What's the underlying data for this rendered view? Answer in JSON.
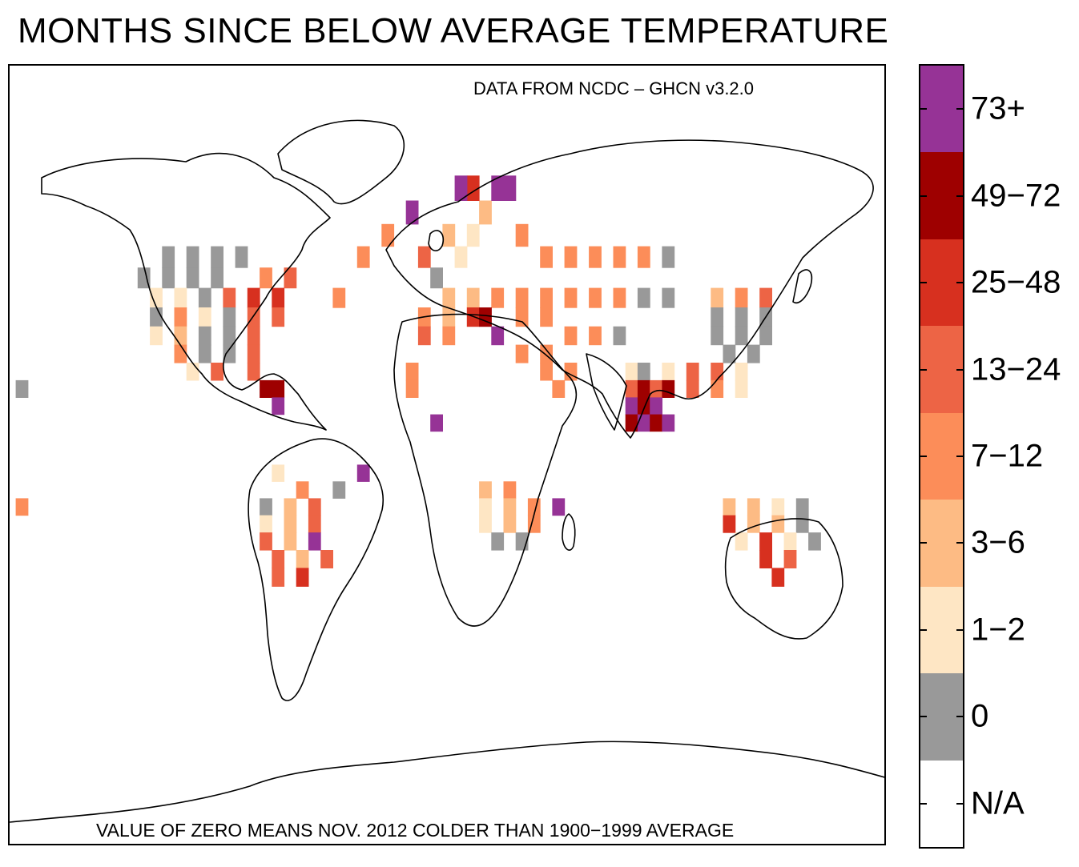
{
  "title": "MONTHS SINCE BELOW AVERAGE TEMPERATURE",
  "source": "DATA FROM NCDC – GHCN v3.2.0",
  "note": "VALUE OF ZERO MEANS NOV. 2012 COLDER THAN 1900−1999 AVERAGE",
  "legend": {
    "items": [
      {
        "label": "73+",
        "color": "#963396"
      },
      {
        "label": "49−72",
        "color": "#9e0000"
      },
      {
        "label": "25−48",
        "color": "#d7301f"
      },
      {
        "label": "13−24",
        "color": "#ed6445"
      },
      {
        "label": "7−12",
        "color": "#fc8d59"
      },
      {
        "label": "3−6",
        "color": "#fdbb84"
      },
      {
        "label": "1−2",
        "color": "#fee6c4"
      },
      {
        "label": "0",
        "color": "#999999"
      },
      {
        "label": "N/A",
        "color": "#ffffff"
      }
    ]
  },
  "map_cells": [
    {
      "lon": -115,
      "lat": 55,
      "v": 0
    },
    {
      "lon": -105,
      "lat": 55,
      "v": 0
    },
    {
      "lon": -95,
      "lat": 55,
      "v": 0
    },
    {
      "lon": -85,
      "lat": 55,
      "v": 0
    },
    {
      "lon": -125,
      "lat": 50,
      "v": 0
    },
    {
      "lon": -115,
      "lat": 50,
      "v": 0
    },
    {
      "lon": -105,
      "lat": 50,
      "v": 0
    },
    {
      "lon": -95,
      "lat": 50,
      "v": 0
    },
    {
      "lon": -75,
      "lat": 50,
      "v": 7
    },
    {
      "lon": -65,
      "lat": 50,
      "v": 13
    },
    {
      "lon": -120,
      "lat": 45,
      "v": 1
    },
    {
      "lon": -110,
      "lat": 45,
      "v": 1
    },
    {
      "lon": -100,
      "lat": 45,
      "v": 0
    },
    {
      "lon": -90,
      "lat": 45,
      "v": 13
    },
    {
      "lon": -80,
      "lat": 45,
      "v": 25
    },
    {
      "lon": -70,
      "lat": 45,
      "v": 25
    },
    {
      "lon": -120,
      "lat": 40,
      "v": 0
    },
    {
      "lon": -110,
      "lat": 40,
      "v": 7
    },
    {
      "lon": -100,
      "lat": 40,
      "v": 1
    },
    {
      "lon": -90,
      "lat": 40,
      "v": 0
    },
    {
      "lon": -80,
      "lat": 40,
      "v": 13
    },
    {
      "lon": -70,
      "lat": 40,
      "v": 13
    },
    {
      "lon": -120,
      "lat": 35,
      "v": 1
    },
    {
      "lon": -110,
      "lat": 35,
      "v": 3
    },
    {
      "lon": -100,
      "lat": 35,
      "v": 0
    },
    {
      "lon": -90,
      "lat": 35,
      "v": 0
    },
    {
      "lon": -80,
      "lat": 35,
      "v": 13
    },
    {
      "lon": -110,
      "lat": 30,
      "v": 7
    },
    {
      "lon": -100,
      "lat": 30,
      "v": 0
    },
    {
      "lon": -90,
      "lat": 30,
      "v": 0
    },
    {
      "lon": -80,
      "lat": 30,
      "v": 13
    },
    {
      "lon": -105,
      "lat": 25,
      "v": 1
    },
    {
      "lon": -95,
      "lat": 25,
      "v": 13
    },
    {
      "lon": -80,
      "lat": 25,
      "v": 13
    },
    {
      "lon": -75,
      "lat": 20,
      "v": 49
    },
    {
      "lon": -70,
      "lat": 20,
      "v": 49
    },
    {
      "lon": -70,
      "lat": 15,
      "v": 73
    },
    {
      "lon": -175,
      "lat": 20,
      "v": 0
    },
    {
      "lon": -175,
      "lat": -15,
      "v": 7
    },
    {
      "lon": -45,
      "lat": 45,
      "v": 7
    },
    {
      "lon": -35,
      "lat": 55,
      "v": 7
    },
    {
      "lon": -25,
      "lat": 60,
      "v": 7
    },
    {
      "lon": -15,
      "lat": 65,
      "v": 73
    },
    {
      "lon": -10,
      "lat": 55,
      "v": 13
    },
    {
      "lon": -5,
      "lat": 50,
      "v": 0
    },
    {
      "lon": 0,
      "lat": 60,
      "v": 3
    },
    {
      "lon": 5,
      "lat": 55,
      "v": 1
    },
    {
      "lon": 10,
      "lat": 60,
      "v": 1
    },
    {
      "lon": 15,
      "lat": 65,
      "v": 3
    },
    {
      "lon": 20,
      "lat": 70,
      "v": 73
    },
    {
      "lon": 25,
      "lat": 70,
      "v": 73
    },
    {
      "lon": 10,
      "lat": 70,
      "v": 25
    },
    {
      "lon": 5,
      "lat": 70,
      "v": 73
    },
    {
      "lon": 30,
      "lat": 60,
      "v": 7
    },
    {
      "lon": 40,
      "lat": 55,
      "v": 7
    },
    {
      "lon": 50,
      "lat": 55,
      "v": 7
    },
    {
      "lon": 60,
      "lat": 55,
      "v": 7
    },
    {
      "lon": 70,
      "lat": 55,
      "v": 7
    },
    {
      "lon": 80,
      "lat": 55,
      "v": 7
    },
    {
      "lon": 90,
      "lat": 55,
      "v": 0
    },
    {
      "lon": 0,
      "lat": 45,
      "v": 3
    },
    {
      "lon": 10,
      "lat": 45,
      "v": 3
    },
    {
      "lon": 20,
      "lat": 45,
      "v": 7
    },
    {
      "lon": 30,
      "lat": 45,
      "v": 7
    },
    {
      "lon": 40,
      "lat": 45,
      "v": 7
    },
    {
      "lon": 50,
      "lat": 45,
      "v": 7
    },
    {
      "lon": 60,
      "lat": 45,
      "v": 7
    },
    {
      "lon": 70,
      "lat": 45,
      "v": 7
    },
    {
      "lon": 80,
      "lat": 45,
      "v": 0
    },
    {
      "lon": 90,
      "lat": 45,
      "v": 0
    },
    {
      "lon": -10,
      "lat": 40,
      "v": 7
    },
    {
      "lon": 0,
      "lat": 40,
      "v": 3
    },
    {
      "lon": 10,
      "lat": 40,
      "v": 25
    },
    {
      "lon": 15,
      "lat": 40,
      "v": 49
    },
    {
      "lon": 20,
      "lat": 35,
      "v": 73
    },
    {
      "lon": 30,
      "lat": 40,
      "v": 7
    },
    {
      "lon": 40,
      "lat": 40,
      "v": 7
    },
    {
      "lon": -10,
      "lat": 35,
      "v": 13
    },
    {
      "lon": 0,
      "lat": 35,
      "v": 7
    },
    {
      "lon": 30,
      "lat": 30,
      "v": 7
    },
    {
      "lon": 40,
      "lat": 30,
      "v": 7
    },
    {
      "lon": 50,
      "lat": 35,
      "v": 7
    },
    {
      "lon": 60,
      "lat": 35,
      "v": 7
    },
    {
      "lon": 70,
      "lat": 35,
      "v": 0
    },
    {
      "lon": -15,
      "lat": 25,
      "v": 7
    },
    {
      "lon": 40,
      "lat": 25,
      "v": 7
    },
    {
      "lon": 50,
      "lat": 25,
      "v": 7
    },
    {
      "lon": -15,
      "lat": 20,
      "v": 7
    },
    {
      "lon": 45,
      "lat": 20,
      "v": 7
    },
    {
      "lon": 75,
      "lat": 25,
      "v": 1
    },
    {
      "lon": 80,
      "lat": 25,
      "v": 0
    },
    {
      "lon": 90,
      "lat": 25,
      "v": 1
    },
    {
      "lon": 100,
      "lat": 25,
      "v": 13
    },
    {
      "lon": 110,
      "lat": 25,
      "v": 13
    },
    {
      "lon": 120,
      "lat": 25,
      "v": 1
    },
    {
      "lon": 75,
      "lat": 20,
      "v": 13
    },
    {
      "lon": 80,
      "lat": 20,
      "v": 49
    },
    {
      "lon": 85,
      "lat": 20,
      "v": 13
    },
    {
      "lon": 90,
      "lat": 20,
      "v": 49
    },
    {
      "lon": 100,
      "lat": 20,
      "v": 13
    },
    {
      "lon": 110,
      "lat": 20,
      "v": 7
    },
    {
      "lon": 120,
      "lat": 20,
      "v": 1
    },
    {
      "lon": 75,
      "lat": 15,
      "v": 73
    },
    {
      "lon": 80,
      "lat": 15,
      "v": 49
    },
    {
      "lon": 85,
      "lat": 15,
      "v": 73
    },
    {
      "lon": 75,
      "lat": 10,
      "v": 49
    },
    {
      "lon": 80,
      "lat": 10,
      "v": 73
    },
    {
      "lon": 85,
      "lat": 10,
      "v": 49
    },
    {
      "lon": 90,
      "lat": 10,
      "v": 73
    },
    {
      "lon": 110,
      "lat": 45,
      "v": 3
    },
    {
      "lon": 120,
      "lat": 45,
      "v": 7
    },
    {
      "lon": 130,
      "lat": 45,
      "v": 13
    },
    {
      "lon": 110,
      "lat": 40,
      "v": 0
    },
    {
      "lon": 120,
      "lat": 40,
      "v": 0
    },
    {
      "lon": 130,
      "lat": 40,
      "v": 0
    },
    {
      "lon": 110,
      "lat": 35,
      "v": 0
    },
    {
      "lon": 120,
      "lat": 35,
      "v": 0
    },
    {
      "lon": 130,
      "lat": 35,
      "v": 0
    },
    {
      "lon": 115,
      "lat": 30,
      "v": 0
    },
    {
      "lon": 125,
      "lat": 30,
      "v": 0
    },
    {
      "lon": -5,
      "lat": 10,
      "v": 73
    },
    {
      "lon": -70,
      "lat": -5,
      "v": 1
    },
    {
      "lon": -60,
      "lat": -10,
      "v": 7
    },
    {
      "lon": -45,
      "lat": -10,
      "v": 0
    },
    {
      "lon": -35,
      "lat": -5,
      "v": 73
    },
    {
      "lon": -75,
      "lat": -15,
      "v": 0
    },
    {
      "lon": -65,
      "lat": -15,
      "v": 3
    },
    {
      "lon": -55,
      "lat": -15,
      "v": 13
    },
    {
      "lon": -75,
      "lat": -20,
      "v": 1
    },
    {
      "lon": -65,
      "lat": -20,
      "v": 3
    },
    {
      "lon": -55,
      "lat": -20,
      "v": 13
    },
    {
      "lon": -75,
      "lat": -25,
      "v": 13
    },
    {
      "lon": -65,
      "lat": -25,
      "v": 3
    },
    {
      "lon": -55,
      "lat": -25,
      "v": 73
    },
    {
      "lon": -70,
      "lat": -30,
      "v": 13
    },
    {
      "lon": -60,
      "lat": -30,
      "v": 3
    },
    {
      "lon": -50,
      "lat": -30,
      "v": 13
    },
    {
      "lon": -70,
      "lat": -35,
      "v": 13
    },
    {
      "lon": -60,
      "lat": -35,
      "v": 25
    },
    {
      "lon": 15,
      "lat": -10,
      "v": 3
    },
    {
      "lon": 25,
      "lat": -10,
      "v": 7
    },
    {
      "lon": 15,
      "lat": -15,
      "v": 1
    },
    {
      "lon": 25,
      "lat": -15,
      "v": 3
    },
    {
      "lon": 35,
      "lat": -15,
      "v": 7
    },
    {
      "lon": 45,
      "lat": -15,
      "v": 73
    },
    {
      "lon": 15,
      "lat": -20,
      "v": 1
    },
    {
      "lon": 25,
      "lat": -20,
      "v": 3
    },
    {
      "lon": 35,
      "lat": -20,
      "v": 7
    },
    {
      "lon": 20,
      "lat": -25,
      "v": 0
    },
    {
      "lon": 30,
      "lat": -25,
      "v": 0
    },
    {
      "lon": 115,
      "lat": -15,
      "v": 3
    },
    {
      "lon": 125,
      "lat": -15,
      "v": 3
    },
    {
      "lon": 135,
      "lat": -15,
      "v": 1
    },
    {
      "lon": 145,
      "lat": -15,
      "v": 0
    },
    {
      "lon": 115,
      "lat": -20,
      "v": 25
    },
    {
      "lon": 125,
      "lat": -20,
      "v": 3
    },
    {
      "lon": 135,
      "lat": -20,
      "v": 3
    },
    {
      "lon": 145,
      "lat": -20,
      "v": 0
    },
    {
      "lon": 120,
      "lat": -25,
      "v": 1
    },
    {
      "lon": 130,
      "lat": -25,
      "v": 25
    },
    {
      "lon": 140,
      "lat": -25,
      "v": 1
    },
    {
      "lon": 150,
      "lat": -25,
      "v": 0
    },
    {
      "lon": 130,
      "lat": -30,
      "v": 25
    },
    {
      "lon": 140,
      "lat": -30,
      "v": 13
    },
    {
      "lon": 135,
      "lat": -35,
      "v": 25
    }
  ]
}
